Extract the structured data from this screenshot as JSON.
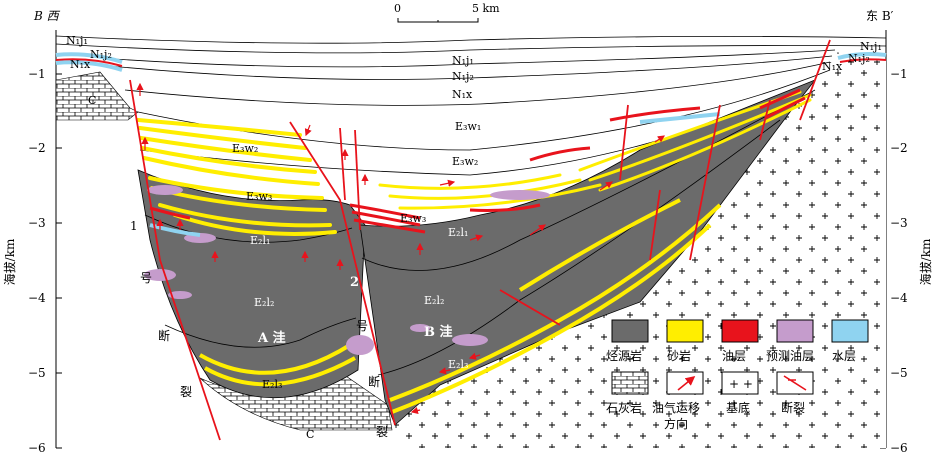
{
  "header": {
    "left_section_label": "B 西",
    "right_section_label": "东 B′",
    "scale_start": "0",
    "scale_end": "5 km"
  },
  "axes": {
    "left_axis_title": "海拔/km",
    "right_axis_title": "海拔/km",
    "ticks": [
      "−1",
      "−2",
      "−3",
      "−4",
      "−5",
      "−6"
    ]
  },
  "strata_labels": {
    "nj1_left": "N₁j₁",
    "nj2_left": "N₁j₂",
    "nx_left": "N₁x",
    "nj1_center": "N₁j₁",
    "nj2_center": "N₁j₂",
    "nx_center": "N₁x",
    "e3w1": "E₃w₁",
    "e3w2_left": "E₃w₂",
    "e3w2_center": "E₃w₂",
    "e3w3_left": "E₃w₃",
    "e3w3_center": "E₃w₃",
    "e2l1_left": "E₂l₁",
    "e2l1_right": "E₂l₁",
    "e2l2_left": "E₂l₂",
    "e2l2_right": "E₂l₂",
    "e2l3_left": "E₂l₃",
    "e2l3_right": "E₂l₃",
    "nj1_right": "N₁j₁",
    "nj2_right": "N₁j₂",
    "nx_right": "N₁x",
    "c_left": "C",
    "c_bottom": "C"
  },
  "fault_labels": {
    "fault1": [
      "1",
      "号",
      "断",
      "裂"
    ],
    "fault2": [
      "2",
      "号",
      "断",
      "裂"
    ]
  },
  "depression_labels": {
    "a": "A 洼",
    "b": "B 洼"
  },
  "legend": {
    "items": [
      {
        "label": "烃源岩",
        "color": "#6b6b6b"
      },
      {
        "label": "砂岩",
        "color": "#ffee00"
      },
      {
        "label": "油层",
        "color": "#e8131c"
      },
      {
        "label": "预测油层",
        "color": "#c59ccc"
      },
      {
        "label": "水层",
        "color": "#8fd3f0"
      },
      {
        "label": "石灰岩",
        "color": "#ffffff"
      },
      {
        "label": "油气运移方向",
        "color": "#e8131c"
      },
      {
        "label": "基底",
        "color": "#ffffff"
      },
      {
        "label": "断裂",
        "color": "#e8131c"
      }
    ],
    "migration_line2": "方向"
  },
  "colors": {
    "source_rock": "#6b6b6b",
    "sandstone": "#ffee00",
    "oil": "#e8131c",
    "predicted_oil": "#c59ccc",
    "water": "#8fd3f0",
    "fault": "#e8131c"
  }
}
